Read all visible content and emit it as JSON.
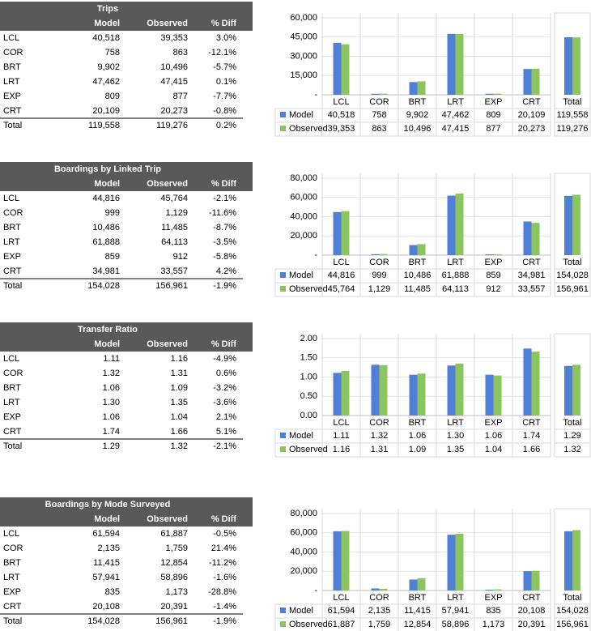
{
  "tables": [
    {
      "title": "Trips",
      "columns": [
        "Model",
        "Observed",
        "% Diff"
      ],
      "rows": [
        [
          "LCL",
          "40,518",
          "39,353",
          "3.0%"
        ],
        [
          "COR",
          "758",
          "863",
          "-12.1%"
        ],
        [
          "BRT",
          "9,902",
          "10,496",
          "-5.7%"
        ],
        [
          "LRT",
          "47,462",
          "47,415",
          "0.1%"
        ],
        [
          "EXP",
          "809",
          "877",
          "-7.7%"
        ],
        [
          "CRT",
          "20,109",
          "20,273",
          "-0.8%"
        ]
      ],
      "total_row": [
        "Total",
        "119,558",
        "119,276",
        "0.2%"
      ]
    },
    {
      "title": "Boardings by Linked Trip",
      "columns": [
        "Model",
        "Observed",
        "% Diff"
      ],
      "rows": [
        [
          "LCL",
          "44,816",
          "45,764",
          "-2.1%"
        ],
        [
          "COR",
          "999",
          "1,129",
          "-11.6%"
        ],
        [
          "BRT",
          "10,486",
          "11,485",
          "-8.7%"
        ],
        [
          "LRT",
          "61,888",
          "64,113",
          "-3.5%"
        ],
        [
          "EXP",
          "859",
          "912",
          "-5.8%"
        ],
        [
          "CRT",
          "34,981",
          "33,557",
          "4.2%"
        ]
      ],
      "total_row": [
        "Total",
        "154,028",
        "156,961",
        "-1.9%"
      ]
    },
    {
      "title": "Transfer Ratio",
      "columns": [
        "Model",
        "Observed",
        "% Diff"
      ],
      "rows": [
        [
          "LCL",
          "1.11",
          "1.16",
          "-4.9%"
        ],
        [
          "COR",
          "1.32",
          "1.31",
          "0.6%"
        ],
        [
          "BRT",
          "1.06",
          "1.09",
          "-3.2%"
        ],
        [
          "LRT",
          "1.30",
          "1.35",
          "-3.6%"
        ],
        [
          "EXP",
          "1.06",
          "1.04",
          "2.1%"
        ],
        [
          "CRT",
          "1.74",
          "1.66",
          "5.1%"
        ]
      ],
      "total_row": [
        "Total",
        "1.29",
        "1.32",
        "-2.1%"
      ]
    },
    {
      "title": "Boardings by Mode Surveyed",
      "columns": [
        "Model",
        "Observed",
        "% Diff"
      ],
      "rows": [
        [
          "LCL",
          "61,594",
          "61,887",
          "-0.5%"
        ],
        [
          "COR",
          "2,135",
          "1,759",
          "21.4%"
        ],
        [
          "BRT",
          "11,415",
          "12,854",
          "-11.2%"
        ],
        [
          "LRT",
          "57,941",
          "58,896",
          "-1.6%"
        ],
        [
          "EXP",
          "835",
          "1,173",
          "-28.8%"
        ],
        [
          "CRT",
          "20,108",
          "20,391",
          "-1.4%"
        ]
      ],
      "total_row": [
        "Total",
        "154,028",
        "156,961",
        "-1.9%"
      ]
    }
  ],
  "chart_data": [
    {
      "type": "bar",
      "categories": [
        "LCL",
        "COR",
        "BRT",
        "LRT",
        "EXP",
        "CRT"
      ],
      "total_category": "Total",
      "ylim": [
        0,
        60000
      ],
      "yticks": [
        {
          "value": 0,
          "label": "-"
        },
        {
          "value": 15000,
          "label": "15,000"
        },
        {
          "value": 30000,
          "label": "30,000"
        },
        {
          "value": 45000,
          "label": "45,000"
        },
        {
          "value": 60000,
          "label": "60,000"
        }
      ],
      "total_ylim": [
        0,
        160000
      ],
      "grid": true,
      "series": [
        {
          "name": "Model",
          "color": "#4f7fd6",
          "values": [
            40518,
            758,
            9902,
            47462,
            809,
            20109
          ],
          "value_labels": [
            "40,518",
            "758",
            "9,902",
            "47,462",
            "809",
            "20,109"
          ],
          "total": 119558,
          "total_label": "119,558"
        },
        {
          "name": "Observed",
          "color": "#8cc45e",
          "values": [
            39353,
            863,
            10496,
            47415,
            877,
            20273
          ],
          "value_labels": [
            "39,353",
            "863",
            "10,496",
            "47,415",
            "877",
            "20,273"
          ],
          "total": 119276,
          "total_label": "119,276"
        }
      ]
    },
    {
      "type": "bar",
      "categories": [
        "LCL",
        "COR",
        "BRT",
        "LRT",
        "EXP",
        "CRT"
      ],
      "total_category": "Total",
      "ylim": [
        0,
        80000
      ],
      "yticks": [
        {
          "value": 0,
          "label": "-"
        },
        {
          "value": 20000,
          "label": "20,000"
        },
        {
          "value": 40000,
          "label": "40,000"
        },
        {
          "value": 60000,
          "label": "60,000"
        },
        {
          "value": 80000,
          "label": "80,000"
        }
      ],
      "total_ylim": [
        0,
        200000
      ],
      "grid": true,
      "series": [
        {
          "name": "Model",
          "color": "#4f7fd6",
          "values": [
            44816,
            999,
            10486,
            61888,
            859,
            34981
          ],
          "value_labels": [
            "44,816",
            "999",
            "10,486",
            "61,888",
            "859",
            "34,981"
          ],
          "total": 154028,
          "total_label": "154,028"
        },
        {
          "name": "Observed",
          "color": "#8cc45e",
          "values": [
            45764,
            1129,
            11485,
            64113,
            912,
            33557
          ],
          "value_labels": [
            "45,764",
            "1,129",
            "11,485",
            "64,113",
            "912",
            "33,557"
          ],
          "total": 156961,
          "total_label": "156,961"
        }
      ]
    },
    {
      "type": "bar",
      "categories": [
        "LCL",
        "COR",
        "BRT",
        "LRT",
        "EXP",
        "CRT"
      ],
      "total_category": "Total",
      "ylim": [
        0,
        2
      ],
      "yticks": [
        {
          "value": 0,
          "label": "0.00"
        },
        {
          "value": 0.5,
          "label": "0.50"
        },
        {
          "value": 1,
          "label": "1.00"
        },
        {
          "value": 1.5,
          "label": "1.50"
        },
        {
          "value": 2,
          "label": "2.00"
        }
      ],
      "grid": true,
      "series": [
        {
          "name": "Model",
          "color": "#4f7fd6",
          "values": [
            1.11,
            1.32,
            1.06,
            1.3,
            1.06,
            1.74
          ],
          "value_labels": [
            "1.11",
            "1.32",
            "1.06",
            "1.30",
            "1.06",
            "1.74"
          ],
          "total": 1.29,
          "total_label": "1.29"
        },
        {
          "name": "Observed",
          "color": "#8cc45e",
          "values": [
            1.16,
            1.31,
            1.09,
            1.35,
            1.04,
            1.66
          ],
          "value_labels": [
            "1.16",
            "1.31",
            "1.09",
            "1.35",
            "1.04",
            "1.66"
          ],
          "total": 1.32,
          "total_label": "1.32"
        }
      ]
    },
    {
      "type": "bar",
      "categories": [
        "LCL",
        "COR",
        "BRT",
        "LRT",
        "EXP",
        "CRT"
      ],
      "total_category": "Total",
      "ylim": [
        0,
        80000
      ],
      "yticks": [
        {
          "value": 0,
          "label": "-"
        },
        {
          "value": 20000,
          "label": "20,000"
        },
        {
          "value": 40000,
          "label": "40,000"
        },
        {
          "value": 60000,
          "label": "60,000"
        },
        {
          "value": 80000,
          "label": "80,000"
        }
      ],
      "total_ylim": [
        0,
        200000
      ],
      "grid": true,
      "series": [
        {
          "name": "Model",
          "color": "#4f7fd6",
          "values": [
            61594,
            2135,
            11415,
            57941,
            835,
            20108
          ],
          "value_labels": [
            "61,594",
            "2,135",
            "11,415",
            "57,941",
            "835",
            "20,108"
          ],
          "total": 154028,
          "total_label": "154,028"
        },
        {
          "name": "Observed",
          "color": "#8cc45e",
          "values": [
            61887,
            1759,
            12854,
            58896,
            1173,
            20391
          ],
          "value_labels": [
            "61,887",
            "1,759",
            "12,854",
            "58,896",
            "1,173",
            "20,391"
          ],
          "total": 156961,
          "total_label": "156,961"
        }
      ]
    }
  ]
}
